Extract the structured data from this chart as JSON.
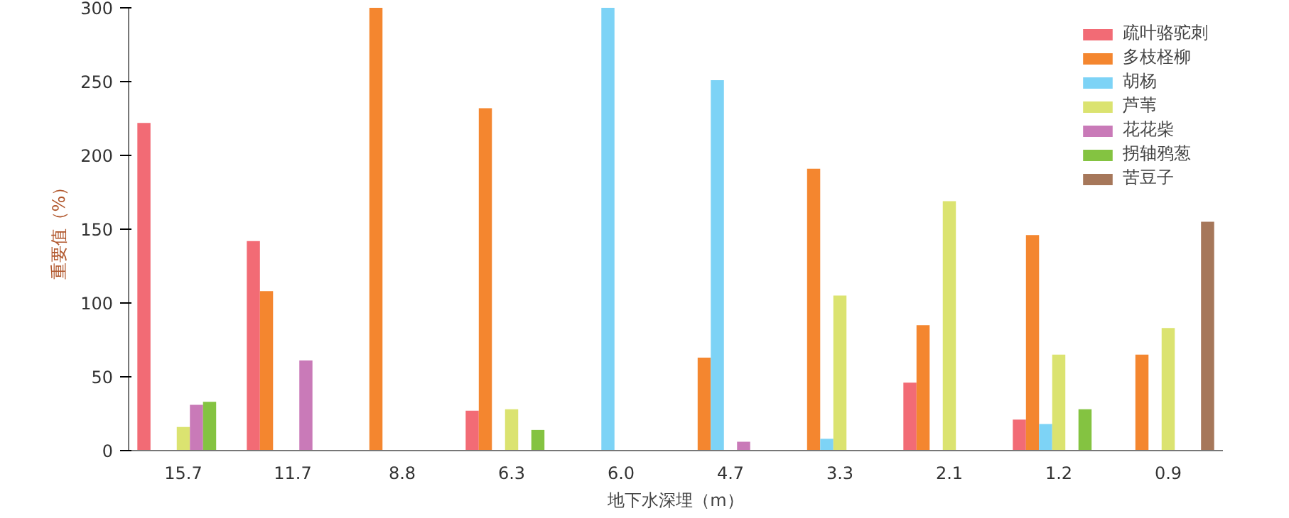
{
  "chart_data": {
    "type": "bar",
    "xlabel": "地下水深埋（m）",
    "ylabel": "重要值（%）",
    "categories": [
      "15.7",
      "11.7",
      "8.8",
      "6.3",
      "6.0",
      "4.7",
      "3.3",
      "2.1",
      "1.2",
      "0.9"
    ],
    "series": [
      {
        "name": "疏叶骆驼刺",
        "color": "#f26b75",
        "values": [
          222,
          142,
          null,
          27,
          null,
          null,
          null,
          46,
          21,
          null
        ]
      },
      {
        "name": "多枝柽柳",
        "color": "#f4862f",
        "values": [
          null,
          108,
          300,
          232,
          null,
          63,
          191,
          85,
          146,
          65
        ]
      },
      {
        "name": "胡杨",
        "color": "#7dd3f6",
        "values": [
          null,
          null,
          null,
          null,
          300,
          251,
          8,
          null,
          18,
          null
        ]
      },
      {
        "name": "芦苇",
        "color": "#dbe370",
        "values": [
          16,
          null,
          null,
          28,
          null,
          null,
          105,
          169,
          65,
          83
        ]
      },
      {
        "name": "花花柴",
        "color": "#c97ab8",
        "values": [
          31,
          61,
          null,
          null,
          null,
          6,
          null,
          null,
          null,
          null
        ]
      },
      {
        "name": "拐轴鸦葱",
        "color": "#84c341",
        "values": [
          33,
          null,
          null,
          14,
          null,
          null,
          null,
          null,
          28,
          null
        ]
      },
      {
        "name": "苦豆子",
        "color": "#a6775a",
        "values": [
          null,
          null,
          null,
          null,
          null,
          null,
          null,
          null,
          null,
          155
        ]
      }
    ],
    "ylim": [
      0,
      300
    ],
    "yticks": [
      0,
      50,
      100,
      150,
      200,
      250,
      300
    ],
    "legend": "top right",
    "grid": false
  }
}
